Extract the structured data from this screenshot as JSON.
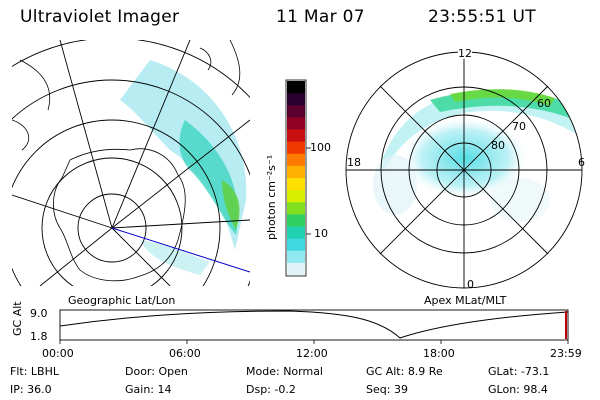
{
  "header": {
    "instrument": "Ultraviolet Imager",
    "date": "11 Mar 07",
    "time": "23:55:51 UT"
  },
  "geo_panel": {
    "label": "Geographic Lat/Lon"
  },
  "mag_panel": {
    "label": "Apex MLat/MLT",
    "mlt_labels": [
      "12",
      "18",
      "6",
      "0"
    ],
    "mlat_labels": [
      "60",
      "70",
      "80"
    ]
  },
  "colorbar": {
    "unit_label": "photon cm⁻²s⁻¹",
    "ticks": [
      "100",
      "10"
    ],
    "colors": [
      "#000000",
      "#2a0030",
      "#5a0030",
      "#900020",
      "#c81010",
      "#f03a00",
      "#ff7a00",
      "#ffb000",
      "#ffe000",
      "#d8f000",
      "#80e020",
      "#30d060",
      "#20d0b0",
      "#40d8e0",
      "#90e8f0",
      "#e0f4f8"
    ]
  },
  "altitude_plot": {
    "axis_label": "GC Alt",
    "y_ticks": [
      "9.0",
      "1.8"
    ],
    "x_ticks": [
      "00:00",
      "06:00",
      "12:00",
      "18:00",
      "23:59"
    ],
    "marker_color": "#c00000"
  },
  "status": {
    "row1": [
      {
        "label": "Flt:",
        "value": "LBHL"
      },
      {
        "label": "Door:",
        "value": "Open"
      },
      {
        "label": "Mode:",
        "value": "Normal"
      },
      {
        "label": "GC Alt:",
        "value": "8.9 Re"
      },
      {
        "label": "GLat:",
        "value": "-73.1"
      }
    ],
    "row2": [
      {
        "label": "IP:",
        "value": "36.0"
      },
      {
        "label": "Gain:",
        "value": "14"
      },
      {
        "label": "Dsp:",
        "value": "-0.2"
      },
      {
        "label": "Seq:",
        "value": "39"
      },
      {
        "label": "GLon:",
        "value": "98.4"
      }
    ]
  }
}
